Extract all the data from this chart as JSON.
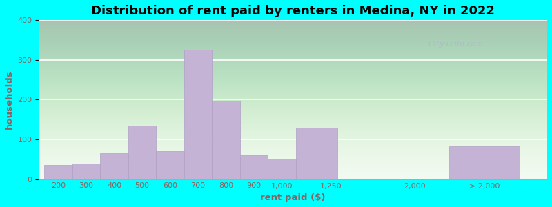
{
  "title": "Distribution of rent paid by renters in Medina, NY in 2022",
  "xlabel": "rent paid ($)",
  "ylabel": "households",
  "bar_color": "#c5b3d5",
  "bar_edge_color": "#b0a0c5",
  "background_color_top": "#d8efd0",
  "background_color_bottom": "#f0faf0",
  "outer_background": "#00ffff",
  "ylim": [
    0,
    400
  ],
  "yticks": [
    0,
    100,
    200,
    300,
    400
  ],
  "tick_color": "#8b6060",
  "label_color": "#8b6060",
  "watermark_text": "City-Data.com",
  "title_fontsize": 13,
  "axis_label_fontsize": 9.5,
  "tick_fontsize": 8,
  "categories": [
    "200",
    "300",
    "400",
    "500",
    "600",
    "700",
    "800",
    "900",
    "1,000",
    "1,250",
    "2,000",
    "> 2,000"
  ],
  "values": [
    35,
    40,
    65,
    135,
    70,
    325,
    197,
    60,
    52,
    130,
    0,
    82
  ],
  "bar_lefts": [
    0.0,
    1.0,
    2.0,
    3.0,
    4.0,
    5.0,
    6.0,
    7.0,
    8.0,
    9.0,
    12.5,
    14.5
  ],
  "bar_widths": [
    1.0,
    1.0,
    1.0,
    1.0,
    1.0,
    1.0,
    1.0,
    1.0,
    1.0,
    1.5,
    0.01,
    2.5
  ],
  "tick_positions": [
    0.5,
    1.5,
    2.5,
    3.5,
    4.5,
    5.5,
    6.5,
    7.5,
    8.5,
    10.25,
    13.25,
    15.75
  ],
  "xlim": [
    -0.2,
    18.0
  ]
}
